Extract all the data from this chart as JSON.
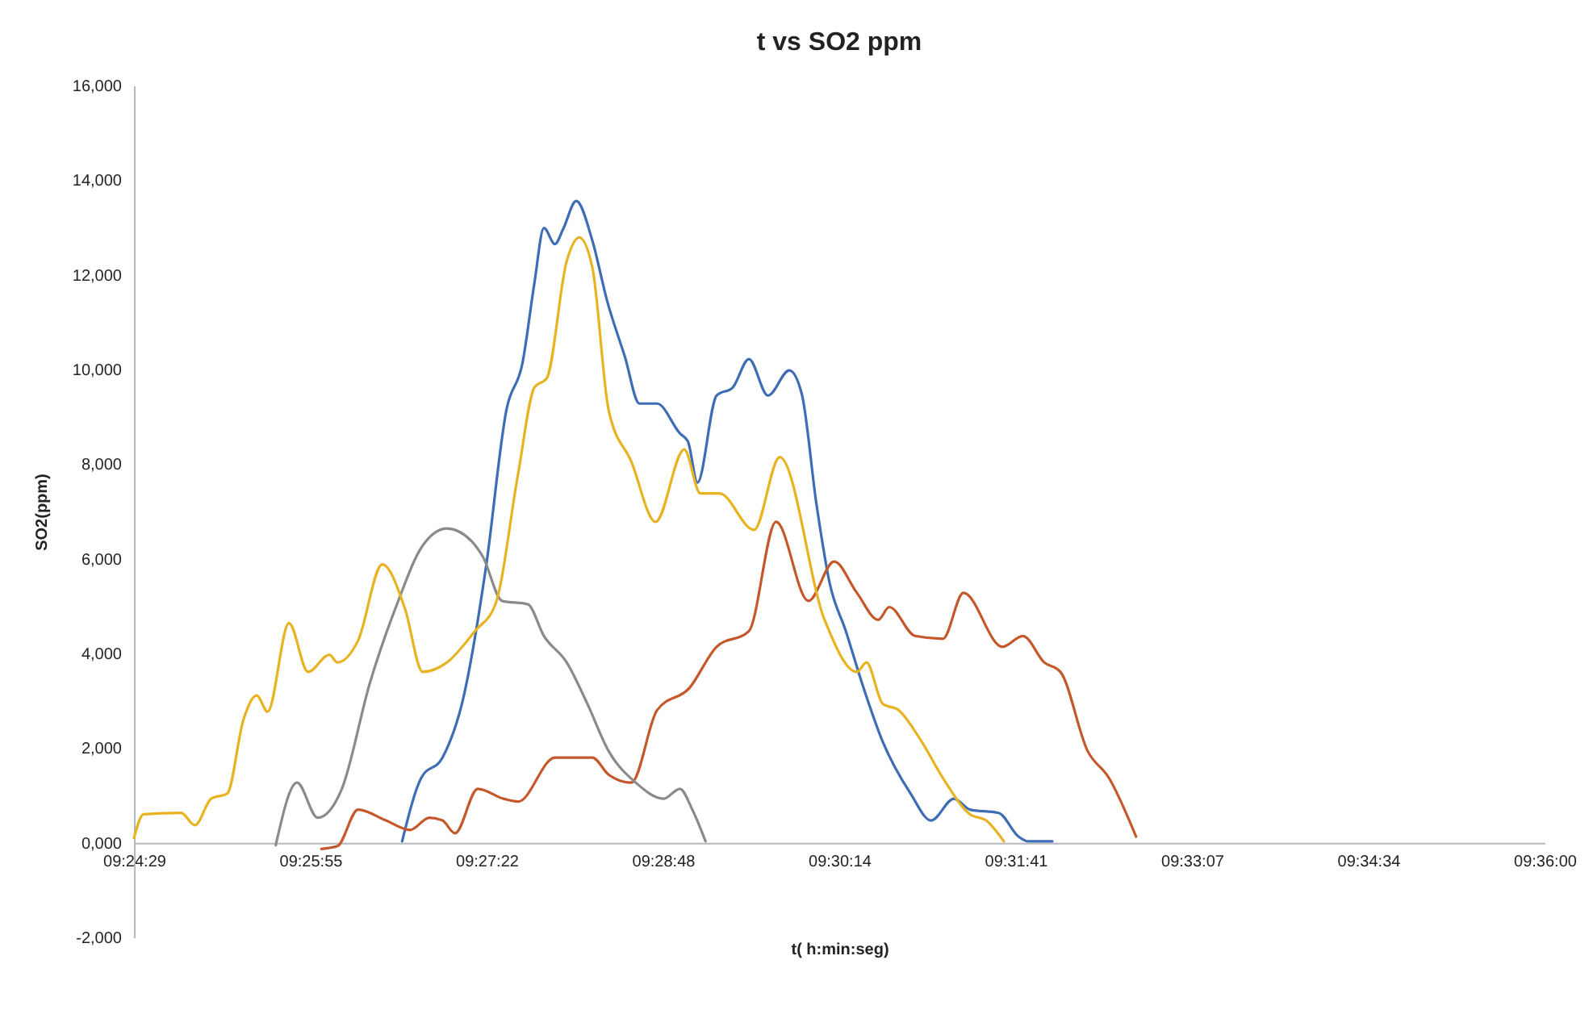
{
  "chart_data": {
    "type": "line",
    "title": "t vs SO2 ppm",
    "xlabel": "t( h:min:seg)",
    "ylabel": "SO2(ppm)",
    "xlim": [
      9.408,
      9.6
    ],
    "xticks": [
      {
        "value": 9.408,
        "label": "09:24:29"
      },
      {
        "value": 9.432,
        "label": "09:25:55"
      },
      {
        "value": 9.456,
        "label": "09:27:22"
      },
      {
        "value": 9.48,
        "label": "09:28:48"
      },
      {
        "value": 9.504,
        "label": "09:30:14"
      },
      {
        "value": 9.528,
        "label": "09:31:41"
      },
      {
        "value": 9.552,
        "label": "09:33:07"
      },
      {
        "value": 9.576,
        "label": "09:34:34"
      },
      {
        "value": 9.6,
        "label": "09:36:00"
      }
    ],
    "ylim": [
      -2000,
      16000
    ],
    "yticks": [
      {
        "value": -2000,
        "label": "-2,000"
      },
      {
        "value": 0,
        "label": "0,000"
      },
      {
        "value": 2000,
        "label": "2,000"
      },
      {
        "value": 4000,
        "label": "4,000"
      },
      {
        "value": 6000,
        "label": "6,000"
      },
      {
        "value": 8000,
        "label": "8,000"
      },
      {
        "value": 10000,
        "label": "10,000"
      },
      {
        "value": 12000,
        "label": "12,000"
      },
      {
        "value": 14000,
        "label": "14,000"
      },
      {
        "value": 16000,
        "label": "16,000"
      }
    ],
    "grid": false,
    "legend": false,
    "series": [
      {
        "color": "#3f6db5",
        "x": [
          9.4445,
          9.4471,
          9.45,
          9.4528,
          9.4559,
          9.4587,
          9.4609,
          9.4625,
          9.4638,
          9.4653,
          9.4664,
          9.4682,
          9.4704,
          9.4724,
          9.4748,
          9.4768,
          9.4792,
          9.4823,
          9.4834,
          9.4847,
          9.4873,
          9.4895,
          9.4917,
          9.4943,
          9.4972,
          9.4989,
          9.5009,
          9.5027,
          9.5049,
          9.5071,
          9.5099,
          9.5137,
          9.5165,
          9.5196,
          9.5218,
          9.5257,
          9.5284,
          9.5297,
          9.533
        ],
        "values": [
          30,
          1370,
          1800,
          3040,
          5810,
          9150,
          10150,
          11820,
          12990,
          12650,
          12960,
          13560,
          12720,
          11450,
          10280,
          9280,
          9280,
          8650,
          8480,
          7610,
          9450,
          9620,
          10220,
          9450,
          9980,
          9480,
          7150,
          5480,
          4470,
          3370,
          2140,
          1040,
          470,
          930,
          700,
          630,
          130,
          30,
          30
        ]
      },
      {
        "color": "#c4582a",
        "x": [
          9.4335,
          9.4357,
          9.4385,
          9.4423,
          9.4456,
          9.4482,
          9.45,
          9.4517,
          9.4548,
          9.4583,
          9.4603,
          9.4653,
          9.4704,
          9.4726,
          9.4757,
          9.4792,
          9.4836,
          9.4873,
          9.4917,
          9.4954,
          9.4998,
          9.5033,
          9.5064,
          9.5093,
          9.5108,
          9.5143,
          9.5181,
          9.5209,
          9.5262,
          9.529,
          9.5319,
          9.5341,
          9.5378,
          9.5407,
          9.5444
        ],
        "values": [
          -130,
          -70,
          700,
          470,
          270,
          530,
          470,
          200,
          1140,
          930,
          870,
          1800,
          1800,
          1440,
          1270,
          2800,
          3270,
          4140,
          4470,
          6780,
          5110,
          5940,
          5280,
          4710,
          4980,
          4370,
          4310,
          5280,
          4140,
          4370,
          3810,
          3610,
          1940,
          1370,
          130
        ]
      },
      {
        "color": "#8a8a8a",
        "x": [
          9.4273,
          9.4302,
          9.433,
          9.4363,
          9.4401,
          9.4438,
          9.4473,
          9.4506,
          9.4539,
          9.4555,
          9.4581,
          9.4616,
          9.4638,
          9.4669,
          9.4697,
          9.4726,
          9.4763,
          9.4801,
          9.4823,
          9.484,
          9.4858
        ],
        "values": [
          -50,
          1270,
          530,
          1140,
          3370,
          5040,
          6280,
          6640,
          6380,
          6040,
          5110,
          5040,
          4370,
          3810,
          2940,
          1940,
          1270,
          930,
          1140,
          700,
          30
        ]
      },
      {
        "color": "#e8b321",
        "x": [
          9.408,
          9.4093,
          9.4144,
          9.4163,
          9.4185,
          9.4207,
          9.4229,
          9.4247,
          9.4262,
          9.4291,
          9.4317,
          9.4346,
          9.4357,
          9.4385,
          9.4418,
          9.4449,
          9.4473,
          9.4506,
          9.4544,
          9.4572,
          9.4603,
          9.4625,
          9.4642,
          9.4669,
          9.4686,
          9.4704,
          9.4726,
          9.4757,
          9.479,
          9.4829,
          9.4851,
          9.4877,
          9.4924,
          9.4959,
          9.502,
          9.5064,
          9.5077,
          9.5099,
          9.5121,
          9.5152,
          9.5181,
          9.5218,
          9.524,
          9.5264
        ],
        "values": [
          100,
          600,
          630,
          370,
          930,
          1040,
          2600,
          3110,
          2770,
          4640,
          3610,
          3970,
          3810,
          4270,
          5880,
          4940,
          3610,
          3810,
          4470,
          5040,
          7810,
          9620,
          9820,
          12290,
          12790,
          12150,
          9150,
          8050,
          6780,
          8310,
          7380,
          7380,
          6610,
          8150,
          4710,
          3610,
          3810,
          2940,
          2800,
          2140,
          1370,
          600,
          470,
          30
        ]
      }
    ]
  }
}
